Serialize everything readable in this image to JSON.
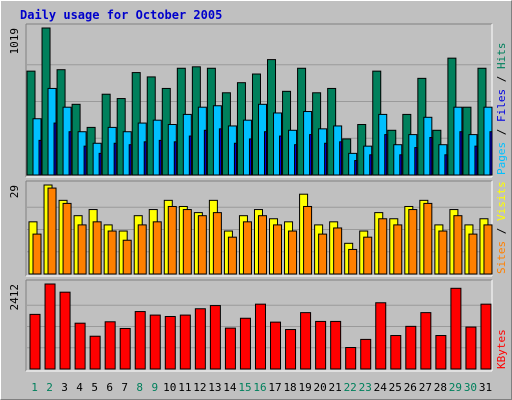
{
  "title": "Daily usage for October 2005",
  "colors": {
    "background": "#c0c0c0",
    "title": "#0000cc",
    "grid": "#9a9a9a",
    "hits": "#00805c",
    "files": "#00c0ff",
    "pages": "#0000e0",
    "visits": "#ffff00",
    "sites": "#ff8000",
    "kbytes": "#ff0000",
    "day_weekday": "#000000",
    "day_weekend": "#00805c"
  },
  "panels": {
    "hits_panel": {
      "max_label": "1019",
      "legend": [
        {
          "text": "Pages",
          "color": "#00c0ff"
        },
        {
          "text": " / ",
          "color": "#000000"
        },
        {
          "text": "Files",
          "color": "#0000e0"
        },
        {
          "text": " / ",
          "color": "#000000"
        },
        {
          "text": "Hits",
          "color": "#00805c"
        }
      ]
    },
    "visits_panel": {
      "max_label": "29",
      "legend": [
        {
          "text": "Sites",
          "color": "#ff8000"
        },
        {
          "text": " / ",
          "color": "#000000"
        },
        {
          "text": "Visits",
          "color": "#ffff00"
        }
      ]
    },
    "kbytes_panel": {
      "max_label": "2412",
      "legend": [
        {
          "text": "KBytes",
          "color": "#ff0000"
        }
      ]
    }
  },
  "chart_data": {
    "type": "bar",
    "title": "Daily usage for October 2005",
    "categories": [
      "1",
      "2",
      "3",
      "4",
      "5",
      "6",
      "7",
      "8",
      "9",
      "10",
      "11",
      "12",
      "13",
      "14",
      "15",
      "16",
      "17",
      "18",
      "19",
      "20",
      "21",
      "22",
      "23",
      "24",
      "25",
      "26",
      "27",
      "28",
      "29",
      "30",
      "31"
    ],
    "weekend_days": [
      "1",
      "2",
      "8",
      "9",
      "15",
      "16",
      "22",
      "23",
      "29",
      "30"
    ],
    "ylim_hits": [
      0,
      1019
    ],
    "ylim_visits": [
      0,
      29
    ],
    "ylim_kbytes": [
      0,
      2412
    ],
    "series": [
      {
        "name": "Hits",
        "panel": "hits",
        "values": [
          720,
          1019,
          730,
          490,
          330,
          560,
          530,
          710,
          680,
          600,
          740,
          750,
          740,
          570,
          640,
          700,
          800,
          580,
          740,
          570,
          600,
          250,
          350,
          720,
          310,
          420,
          670,
          310,
          810,
          470,
          740
        ]
      },
      {
        "name": "Files",
        "panel": "hits",
        "values": [
          390,
          600,
          470,
          300,
          220,
          330,
          300,
          360,
          380,
          350,
          420,
          470,
          480,
          340,
          380,
          490,
          430,
          310,
          440,
          320,
          340,
          150,
          200,
          420,
          210,
          280,
          400,
          210,
          470,
          280,
          470
        ]
      },
      {
        "name": "Pages",
        "panel": "hits",
        "values": [
          240,
          360,
          300,
          200,
          150,
          220,
          210,
          230,
          240,
          230,
          270,
          310,
          320,
          220,
          250,
          300,
          270,
          210,
          280,
          220,
          230,
          100,
          140,
          280,
          140,
          190,
          260,
          140,
          300,
          200,
          300
        ]
      },
      {
        "name": "Visits",
        "panel": "visits",
        "values": [
          17,
          29,
          24,
          19,
          21,
          16,
          14,
          19,
          21,
          24,
          22,
          20,
          24,
          14,
          19,
          21,
          18,
          17,
          26,
          16,
          17,
          10,
          14,
          20,
          18,
          22,
          24,
          16,
          21,
          16,
          18
        ]
      },
      {
        "name": "Sites",
        "panel": "visits",
        "values": [
          13,
          28,
          23,
          16,
          17,
          14,
          11,
          16,
          17,
          22,
          21,
          19,
          20,
          12,
          17,
          19,
          16,
          14,
          22,
          13,
          15,
          8,
          12,
          18,
          16,
          21,
          23,
          14,
          19,
          13,
          16
        ]
      },
      {
        "name": "KBytes",
        "panel": "kbytes",
        "values": [
          1550,
          2412,
          2180,
          1300,
          930,
          1340,
          1150,
          1630,
          1530,
          1490,
          1530,
          1710,
          1800,
          1160,
          1440,
          1840,
          1330,
          1120,
          1600,
          1350,
          1350,
          610,
          840,
          1880,
          950,
          1210,
          1600,
          950,
          2290,
          1190,
          1840
        ]
      }
    ]
  }
}
